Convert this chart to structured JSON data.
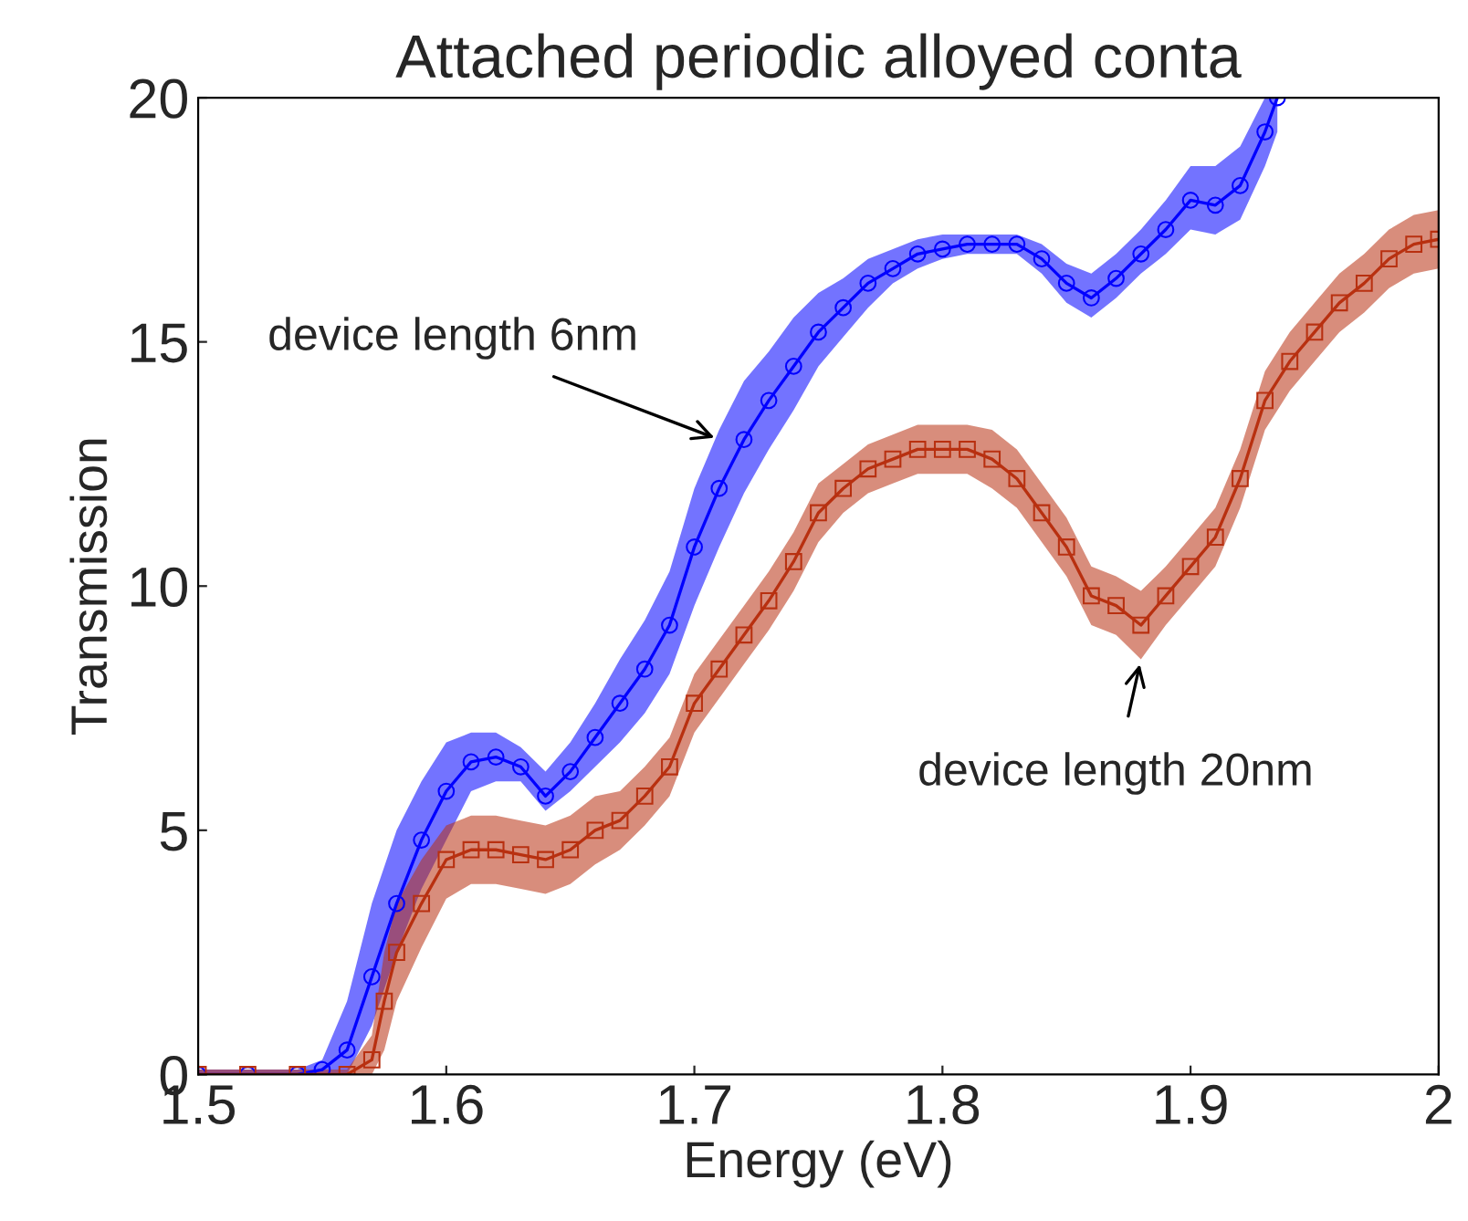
{
  "chart_data": {
    "type": "line",
    "title": "Attached periodic alloyed conta",
    "xlabel": "Energy (eV)",
    "ylabel": "Transmission",
    "xlim": [
      1.5,
      2
    ],
    "xticks": [
      1.5,
      1.6,
      1.7,
      1.8,
      1.9,
      2
    ],
    "ylim": [
      0,
      20
    ],
    "yticks": [
      0,
      5,
      10,
      15,
      20
    ],
    "grid": false,
    "line_style": "solid",
    "series": [
      {
        "color": "#0000ff",
        "marker": "circle",
        "x": [
          1.5,
          1.52,
          1.54,
          1.55,
          1.56,
          1.57,
          1.58,
          1.59,
          1.6,
          1.61,
          1.62,
          1.63,
          1.64,
          1.65,
          1.66,
          1.67,
          1.68,
          1.69,
          1.7,
          1.71,
          1.72,
          1.73,
          1.74,
          1.75,
          1.76,
          1.77,
          1.78,
          1.79,
          1.8,
          1.81,
          1.82,
          1.83,
          1.84,
          1.85,
          1.86,
          1.87,
          1.88,
          1.89,
          1.9,
          1.91,
          1.92,
          1.93,
          1.935
        ],
        "values": [
          0,
          0,
          0,
          0.1,
          0.5,
          2,
          3.5,
          4.8,
          5.8,
          6.4,
          6.5,
          6.3,
          5.7,
          6.2,
          6.9,
          7.6,
          8.3,
          9.2,
          10.8,
          12,
          13,
          13.8,
          14.5,
          15.2,
          15.7,
          16.2,
          16.5,
          16.8,
          16.9,
          17,
          17,
          17,
          16.7,
          16.2,
          15.9,
          16.3,
          16.8,
          17.3,
          17.9,
          17.8,
          18.2,
          19.3,
          20
        ],
        "lower": [
          0,
          0,
          0,
          0,
          0,
          1,
          2.5,
          3.8,
          4.8,
          5.8,
          6.0,
          6.0,
          5.4,
          5.8,
          6.3,
          6.8,
          7.4,
          8.2,
          9.6,
          10.8,
          11.9,
          12.8,
          13.6,
          14.5,
          15.1,
          15.7,
          16.2,
          16.5,
          16.7,
          16.8,
          16.8,
          16.8,
          16.4,
          15.8,
          15.5,
          15.9,
          16.4,
          16.8,
          17.3,
          17.2,
          17.5,
          18.6,
          19.3
        ],
        "upper": [
          0.1,
          0.1,
          0.1,
          0.3,
          1.5,
          3.5,
          5,
          6,
          6.8,
          7,
          7,
          6.7,
          6.2,
          6.8,
          7.6,
          8.5,
          9.3,
          10.3,
          12,
          13.2,
          14.2,
          14.8,
          15.5,
          16,
          16.3,
          16.7,
          16.9,
          17.1,
          17.2,
          17.2,
          17.2,
          17.2,
          17,
          16.6,
          16.4,
          16.8,
          17.3,
          17.9,
          18.6,
          18.6,
          19,
          20,
          20
        ]
      },
      {
        "color": "#b83010",
        "marker": "square",
        "x": [
          1.5,
          1.52,
          1.54,
          1.56,
          1.57,
          1.575,
          1.58,
          1.59,
          1.6,
          1.61,
          1.62,
          1.63,
          1.64,
          1.65,
          1.66,
          1.67,
          1.68,
          1.69,
          1.7,
          1.71,
          1.72,
          1.73,
          1.74,
          1.75,
          1.76,
          1.77,
          1.78,
          1.79,
          1.8,
          1.81,
          1.82,
          1.83,
          1.84,
          1.85,
          1.86,
          1.87,
          1.88,
          1.89,
          1.9,
          1.91,
          1.92,
          1.93,
          1.94,
          1.95,
          1.96,
          1.97,
          1.98,
          1.99,
          2.0
        ],
        "values": [
          0,
          0,
          0,
          0,
          0.3,
          1.5,
          2.5,
          3.5,
          4.4,
          4.6,
          4.6,
          4.5,
          4.4,
          4.6,
          5.0,
          5.2,
          5.7,
          6.3,
          7.6,
          8.3,
          9.0,
          9.7,
          10.5,
          11.5,
          12.0,
          12.4,
          12.6,
          12.8,
          12.8,
          12.8,
          12.6,
          12.2,
          11.5,
          10.8,
          9.8,
          9.6,
          9.2,
          9.8,
          10.4,
          11.0,
          12.2,
          13.8,
          14.6,
          15.2,
          15.8,
          16.2,
          16.7,
          17.0,
          17.1
        ],
        "lower": [
          0,
          0,
          0,
          0,
          0,
          0.5,
          1.5,
          2.6,
          3.6,
          3.9,
          3.9,
          3.8,
          3.7,
          3.9,
          4.3,
          4.6,
          5.1,
          5.7,
          7.0,
          7.7,
          8.4,
          9.1,
          9.9,
          10.9,
          11.5,
          11.9,
          12.1,
          12.3,
          12.3,
          12.3,
          12.0,
          11.6,
          10.9,
          10.2,
          9.2,
          9.0,
          8.5,
          9.2,
          9.8,
          10.4,
          11.6,
          13.2,
          14.0,
          14.6,
          15.2,
          15.6,
          16.1,
          16.4,
          16.5
        ],
        "upper": [
          0.1,
          0.1,
          0.1,
          0.1,
          0.8,
          2.5,
          3.5,
          4.4,
          5.1,
          5.3,
          5.3,
          5.2,
          5.1,
          5.3,
          5.7,
          5.8,
          6.3,
          6.9,
          8.2,
          8.9,
          9.6,
          10.3,
          11.1,
          12.1,
          12.5,
          12.9,
          13.1,
          13.3,
          13.3,
          13.3,
          13.2,
          12.8,
          12.1,
          11.4,
          10.4,
          10.2,
          9.9,
          10.4,
          11.0,
          11.6,
          12.8,
          14.4,
          15.2,
          15.8,
          16.4,
          16.8,
          17.3,
          17.6,
          17.7
        ]
      }
    ],
    "annotations": [
      {
        "text": "device length 6nm",
        "x": 1.71,
        "y": 13.0
      },
      {
        "text": "device length 20nm",
        "x": 1.88,
        "y": 8.5
      }
    ]
  }
}
